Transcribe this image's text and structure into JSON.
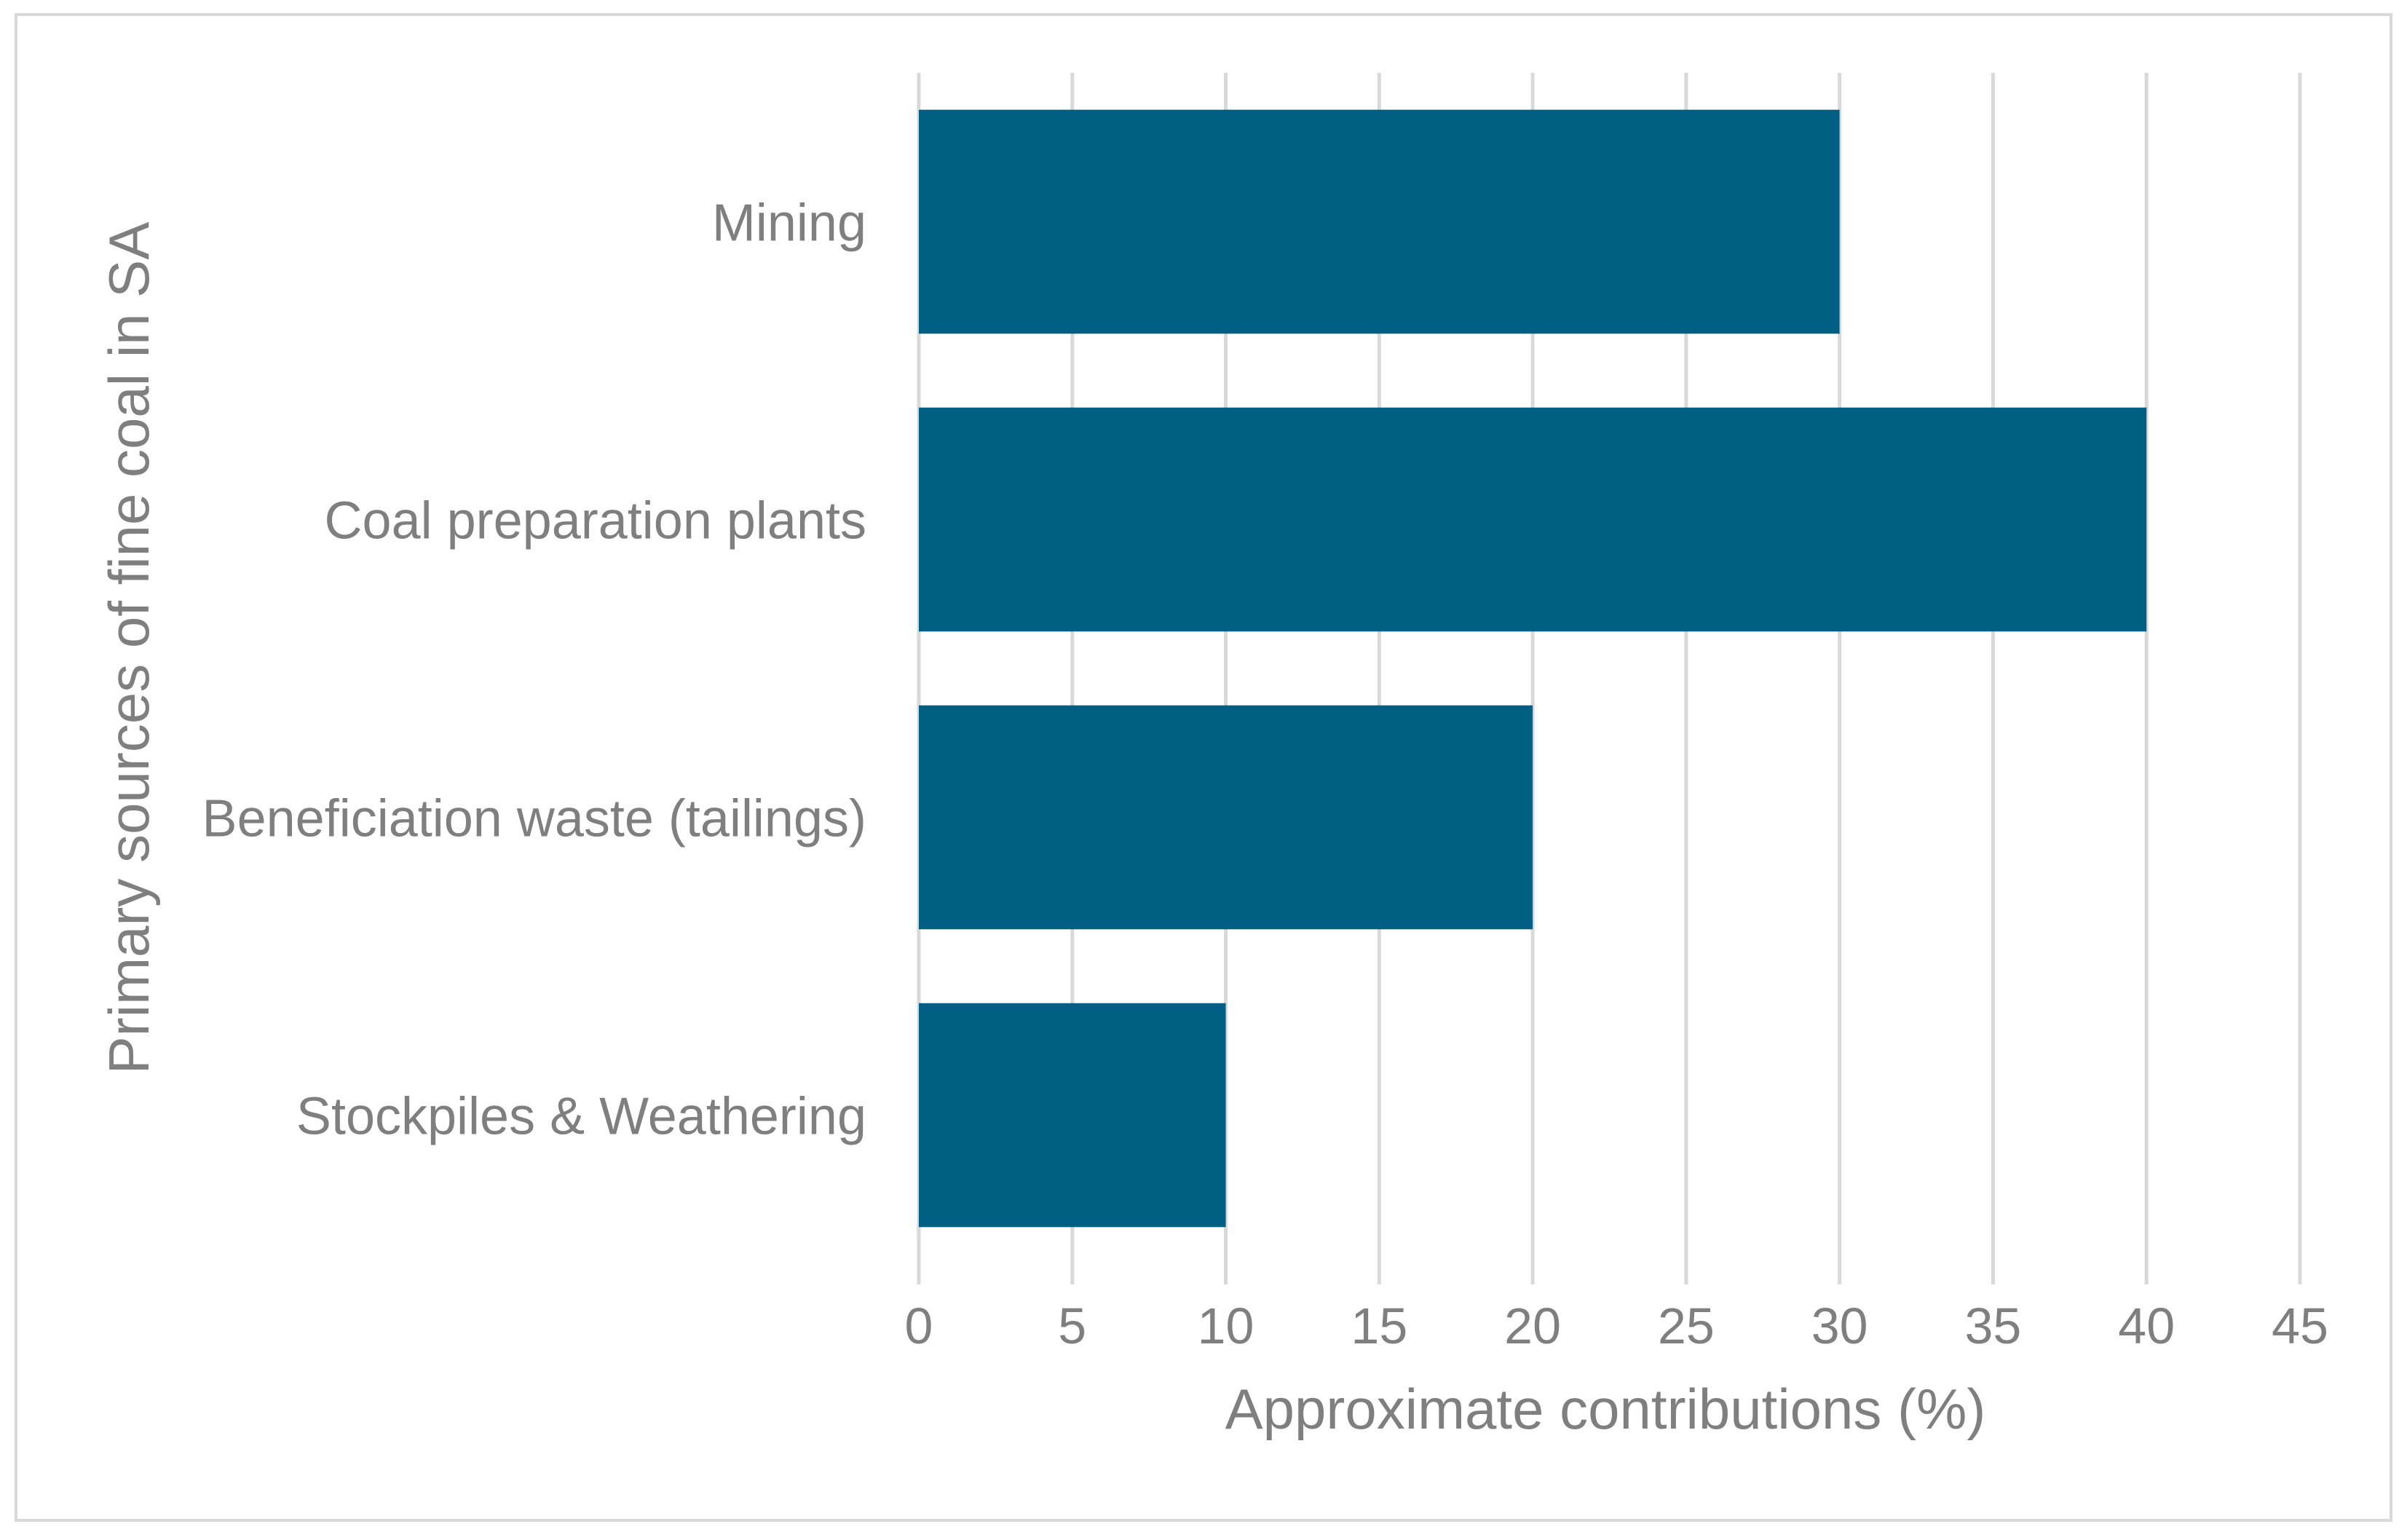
{
  "chart_data": {
    "type": "bar",
    "orientation": "horizontal",
    "title": "",
    "categories": [
      "Mining",
      "Coal preparation plants",
      "Beneficiation waste (tailings)",
      "Stockpiles & Weathering"
    ],
    "series": [
      {
        "name": "Approximate contributions (%)",
        "values": [
          30,
          40,
          20,
          10
        ]
      }
    ],
    "xlabel": "Approximate contributions (%)",
    "ylabel": "Primary sources of fine coal in SA",
    "xlim": [
      0,
      45
    ],
    "xticks": [
      0,
      5,
      10,
      15,
      20,
      25,
      30,
      35,
      40,
      45
    ],
    "grid": true,
    "legend": "none",
    "bar_color": "#005f83",
    "grid_color": "#d9d9d9",
    "text_color": "#7f7f7f",
    "border_color": "#d9d9d9"
  }
}
